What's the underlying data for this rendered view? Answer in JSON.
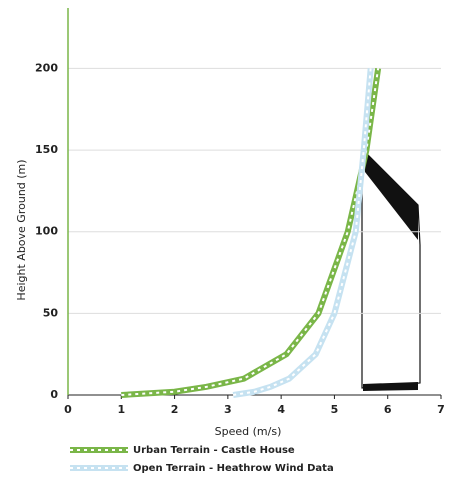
{
  "chart_data": {
    "type": "line",
    "x_label": "Speed (m/s)",
    "y_label": "Height Above Ground (m)",
    "xlim": [
      0,
      7
    ],
    "xticks": [
      0,
      1,
      2,
      3,
      4,
      5,
      6,
      7
    ],
    "ylim": [
      0,
      237
    ],
    "yticks": [
      0,
      50,
      100,
      150,
      200
    ],
    "grid": true,
    "legend": "bottom",
    "series": [
      {
        "name": "Urban Terrain - Castle House",
        "color": "#7ab648",
        "x": [
          1,
          2,
          2.6,
          3.3,
          4.1,
          4.7,
          5.25,
          5.6,
          5.82
        ],
        "values": [
          0,
          2,
          5,
          10,
          25,
          50,
          100,
          150,
          200
        ]
      },
      {
        "name": "Open Terrain - Heathrow Wind Data",
        "color": "#c6e2f1",
        "x": [
          3.1,
          3.5,
          3.8,
          4.15,
          4.65,
          5.0,
          5.4,
          5.55,
          5.68
        ],
        "values": [
          0,
          2,
          5,
          10,
          25,
          50,
          100,
          150,
          200
        ]
      }
    ]
  }
}
